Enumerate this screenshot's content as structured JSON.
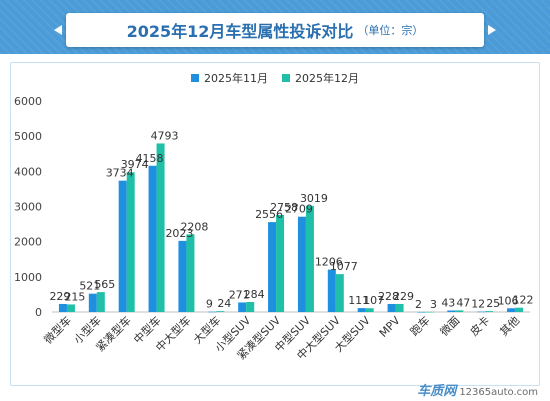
{
  "header": {
    "title": "2025年12月车型属性投诉对比",
    "unit": "（单位：宗）"
  },
  "colors": {
    "series1": "#1f8fe0",
    "series2": "#20c0a8",
    "header_bg": "#4a9bd7"
  },
  "chart_data": {
    "type": "bar",
    "title": "2025年12月车型属性投诉对比",
    "subtitle": "（单位：宗）",
    "categories": [
      "微型车",
      "小型车",
      "紧凑型车",
      "中型车",
      "中大型车",
      "大型车",
      "小型SUV",
      "紧凑型SUV",
      "中型SUV",
      "中大型SUV",
      "大型SUV",
      "MPV",
      "跑车",
      "微面",
      "皮卡",
      "其他"
    ],
    "series": [
      {
        "name": "2025年11月",
        "values": [
          229,
          521,
          3734,
          4158,
          2023,
          9,
          271,
          2556,
          2709,
          1206,
          111,
          228,
          2,
          43,
          12,
          106
        ]
      },
      {
        "name": "2025年12月",
        "values": [
          215,
          565,
          3974,
          4793,
          2208,
          24,
          284,
          2758,
          3019,
          1077,
          107,
          229,
          3,
          47,
          25,
          122
        ]
      }
    ],
    "yticks": [
      0,
      1000,
      2000,
      3000,
      4000,
      5000,
      6000
    ],
    "ylim": [
      0,
      6000
    ],
    "grid": false,
    "legend": "top"
  },
  "footer": {
    "brand": "车质网",
    "url": "12365auto.com"
  }
}
